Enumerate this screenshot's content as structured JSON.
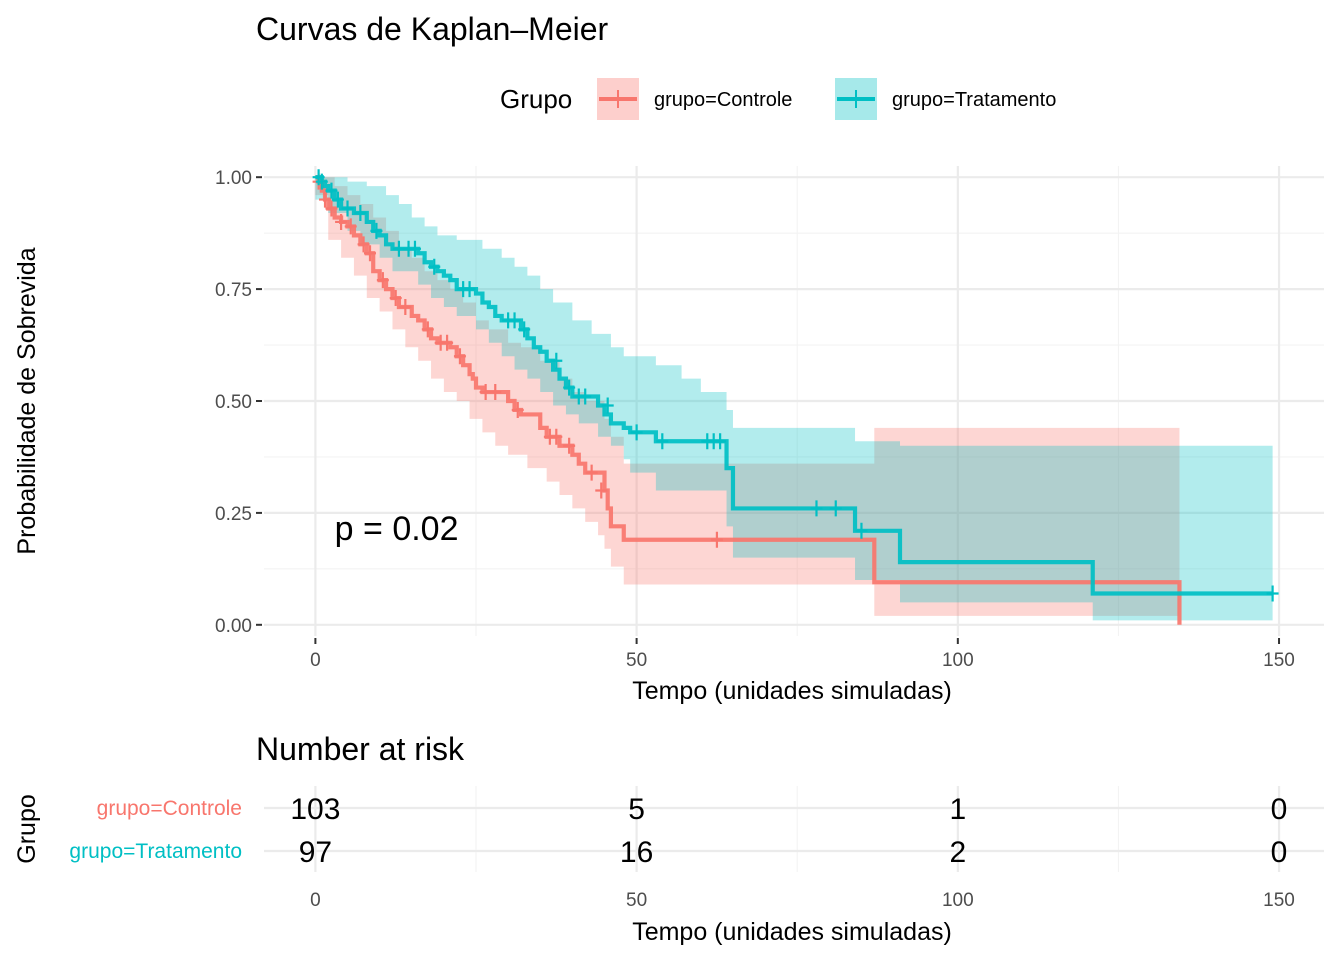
{
  "chart_data": [
    {
      "type": "line",
      "subtype": "kaplan-meier",
      "title": "Curvas de Kaplan–Meier",
      "xlabel": "Tempo (unidades simuladas)",
      "ylabel": "Probabilidade de Sobrevida",
      "xlim": [
        -8,
        157
      ],
      "ylim": [
        -0.025,
        1.025
      ],
      "x_ticks": [
        0,
        50,
        100,
        150
      ],
      "x_tick_labels": [
        "0",
        "50",
        "100",
        "150"
      ],
      "y_ticks": [
        0,
        0.25,
        0.5,
        0.75,
        1
      ],
      "y_tick_labels": [
        "0.00",
        "0.25",
        "0.50",
        "0.75",
        "1.00"
      ],
      "grid": true,
      "legend": {
        "title": "Grupo",
        "position": "top",
        "entries": [
          "grupo=Controle",
          "grupo=Tratamento"
        ]
      },
      "annotation": "p = 0.02",
      "annotation_at": [
        3,
        0.19
      ],
      "series": [
        {
          "name": "grupo=Controle",
          "color": "#F8766D",
          "steps": [
            [
              0,
              1.0
            ],
            [
              0.5,
              0.99
            ],
            [
              1,
              0.97
            ],
            [
              1.5,
              0.95
            ],
            [
              2,
              0.93
            ],
            [
              3,
              0.91
            ],
            [
              4,
              0.9
            ],
            [
              5,
              0.89
            ],
            [
              6,
              0.87
            ],
            [
              7,
              0.85
            ],
            [
              8,
              0.83
            ],
            [
              9,
              0.79
            ],
            [
              10,
              0.77
            ],
            [
              11,
              0.75
            ],
            [
              12,
              0.73
            ],
            [
              13,
              0.71
            ],
            [
              15,
              0.69
            ],
            [
              16,
              0.68
            ],
            [
              17,
              0.66
            ],
            [
              18,
              0.64
            ],
            [
              19,
              0.63
            ],
            [
              21,
              0.62
            ],
            [
              22,
              0.6
            ],
            [
              23,
              0.58
            ],
            [
              24,
              0.56
            ],
            [
              24.5,
              0.55
            ],
            [
              25,
              0.53
            ],
            [
              26,
              0.52
            ],
            [
              30,
              0.5
            ],
            [
              31,
              0.48
            ],
            [
              32,
              0.47
            ],
            [
              35,
              0.44
            ],
            [
              36,
              0.42
            ],
            [
              38,
              0.4
            ],
            [
              40,
              0.38
            ],
            [
              41,
              0.36
            ],
            [
              42,
              0.34
            ],
            [
              45,
              0.3
            ],
            [
              45.5,
              0.26
            ],
            [
              46,
              0.22
            ],
            [
              48,
              0.19
            ],
            [
              87,
              0.095
            ],
            [
              134.5,
              0.0
            ]
          ],
          "end_x": 134.5,
          "ci_upper": [
            [
              0,
              1.0
            ],
            [
              2,
              1.0
            ],
            [
              3,
              0.98
            ],
            [
              5,
              0.96
            ],
            [
              7,
              0.94
            ],
            [
              9,
              0.91
            ],
            [
              11,
              0.88
            ],
            [
              13,
              0.84
            ],
            [
              15,
              0.82
            ],
            [
              17,
              0.79
            ],
            [
              19,
              0.77
            ],
            [
              21,
              0.75
            ],
            [
              23,
              0.72
            ],
            [
              25,
              0.68
            ],
            [
              27,
              0.66
            ],
            [
              30,
              0.63
            ],
            [
              32,
              0.62
            ],
            [
              35,
              0.59
            ],
            [
              38,
              0.55
            ],
            [
              40,
              0.52
            ],
            [
              42,
              0.5
            ],
            [
              45,
              0.46
            ],
            [
              46,
              0.42
            ],
            [
              48,
              0.36
            ],
            [
              87,
              0.44
            ]
          ],
          "ci_lower": [
            [
              0,
              0.96
            ],
            [
              2,
              0.86
            ],
            [
              4,
              0.82
            ],
            [
              6,
              0.78
            ],
            [
              8,
              0.73
            ],
            [
              10,
              0.7
            ],
            [
              12,
              0.66
            ],
            [
              14,
              0.62
            ],
            [
              16,
              0.59
            ],
            [
              18,
              0.55
            ],
            [
              20,
              0.52
            ],
            [
              22,
              0.5
            ],
            [
              24,
              0.46
            ],
            [
              26,
              0.43
            ],
            [
              28,
              0.4
            ],
            [
              30,
              0.38
            ],
            [
              33,
              0.35
            ],
            [
              36,
              0.32
            ],
            [
              38,
              0.29
            ],
            [
              40,
              0.26
            ],
            [
              42,
              0.23
            ],
            [
              44,
              0.2
            ],
            [
              45,
              0.17
            ],
            [
              46,
              0.13
            ],
            [
              48,
              0.09
            ],
            [
              87,
              0.02
            ],
            [
              134.5,
              0.0
            ]
          ],
          "censor_times": [
            [
              0.5,
              0.99
            ],
            [
              1.5,
              0.95
            ],
            [
              2.5,
              0.93
            ],
            [
              4,
              0.9
            ],
            [
              5.5,
              0.89
            ],
            [
              7.5,
              0.85
            ],
            [
              8.5,
              0.83
            ],
            [
              10.5,
              0.77
            ],
            [
              12.5,
              0.73
            ],
            [
              14,
              0.71
            ],
            [
              17.5,
              0.66
            ],
            [
              19.5,
              0.63
            ],
            [
              20.5,
              0.63
            ],
            [
              22.5,
              0.6
            ],
            [
              26.5,
              0.52
            ],
            [
              28,
              0.52
            ],
            [
              31.5,
              0.48
            ],
            [
              36.5,
              0.42
            ],
            [
              37.5,
              0.42
            ],
            [
              39.5,
              0.4
            ],
            [
              43,
              0.34
            ],
            [
              44.5,
              0.3
            ],
            [
              62.5,
              0.19
            ]
          ]
        },
        {
          "name": "grupo=Tratamento",
          "color": "#00BFC4",
          "steps": [
            [
              0,
              1.0
            ],
            [
              1,
              0.99
            ],
            [
              1.5,
              0.98
            ],
            [
              2,
              0.97
            ],
            [
              3,
              0.95
            ],
            [
              4,
              0.93
            ],
            [
              6,
              0.92
            ],
            [
              8,
              0.9
            ],
            [
              9,
              0.88
            ],
            [
              10,
              0.87
            ],
            [
              11,
              0.85
            ],
            [
              12,
              0.84
            ],
            [
              16,
              0.83
            ],
            [
              17,
              0.81
            ],
            [
              18,
              0.8
            ],
            [
              19,
              0.79
            ],
            [
              20,
              0.78
            ],
            [
              21,
              0.77
            ],
            [
              22,
              0.75
            ],
            [
              25,
              0.74
            ],
            [
              26,
              0.72
            ],
            [
              27,
              0.71
            ],
            [
              28,
              0.69
            ],
            [
              29,
              0.68
            ],
            [
              32,
              0.66
            ],
            [
              33,
              0.64
            ],
            [
              34,
              0.62
            ],
            [
              35,
              0.61
            ],
            [
              36,
              0.59
            ],
            [
              37,
              0.57
            ],
            [
              38,
              0.55
            ],
            [
              39,
              0.53
            ],
            [
              40,
              0.51
            ],
            [
              44,
              0.49
            ],
            [
              45,
              0.47
            ],
            [
              46,
              0.45
            ],
            [
              48,
              0.44
            ],
            [
              49,
              0.43
            ],
            [
              53,
              0.41
            ],
            [
              64,
              0.35
            ],
            [
              65,
              0.26
            ],
            [
              84,
              0.21
            ],
            [
              91,
              0.14
            ],
            [
              121,
              0.07
            ]
          ],
          "end_x": 149,
          "ci_upper": [
            [
              0,
              1.0
            ],
            [
              5,
              0.99
            ],
            [
              8,
              0.98
            ],
            [
              11,
              0.96
            ],
            [
              13,
              0.94
            ],
            [
              15,
              0.91
            ],
            [
              17,
              0.89
            ],
            [
              19,
              0.87
            ],
            [
              22,
              0.86
            ],
            [
              26,
              0.84
            ],
            [
              29,
              0.82
            ],
            [
              31,
              0.8
            ],
            [
              33,
              0.78
            ],
            [
              35,
              0.75
            ],
            [
              37,
              0.72
            ],
            [
              40,
              0.68
            ],
            [
              43,
              0.65
            ],
            [
              46,
              0.62
            ],
            [
              48,
              0.6
            ],
            [
              53,
              0.58
            ],
            [
              57,
              0.55
            ],
            [
              60,
              0.52
            ],
            [
              64,
              0.48
            ],
            [
              65,
              0.44
            ],
            [
              84,
              0.41
            ],
            [
              91,
              0.4
            ]
          ],
          "ci_lower": [
            [
              0,
              0.95
            ],
            [
              2,
              0.92
            ],
            [
              5,
              0.88
            ],
            [
              7,
              0.85
            ],
            [
              10,
              0.82
            ],
            [
              12,
              0.79
            ],
            [
              16,
              0.76
            ],
            [
              18,
              0.73
            ],
            [
              20,
              0.71
            ],
            [
              22,
              0.69
            ],
            [
              25,
              0.66
            ],
            [
              27,
              0.63
            ],
            [
              29,
              0.6
            ],
            [
              31,
              0.57
            ],
            [
              33,
              0.55
            ],
            [
              35,
              0.52
            ],
            [
              37,
              0.49
            ],
            [
              39,
              0.47
            ],
            [
              41,
              0.45
            ],
            [
              44,
              0.42
            ],
            [
              46,
              0.4
            ],
            [
              48,
              0.37
            ],
            [
              49,
              0.34
            ],
            [
              53,
              0.3
            ],
            [
              64,
              0.22
            ],
            [
              65,
              0.15
            ],
            [
              84,
              0.1
            ],
            [
              91,
              0.05
            ],
            [
              121,
              0.01
            ],
            [
              148,
              0.01
            ]
          ],
          "censor_times": [
            [
              0.5,
              1.0
            ],
            [
              1,
              0.99
            ],
            [
              2.5,
              0.97
            ],
            [
              3.5,
              0.95
            ],
            [
              5,
              0.93
            ],
            [
              7,
              0.92
            ],
            [
              9.5,
              0.88
            ],
            [
              13,
              0.84
            ],
            [
              14.5,
              0.84
            ],
            [
              15.5,
              0.84
            ],
            [
              18.5,
              0.8
            ],
            [
              23,
              0.75
            ],
            [
              24,
              0.75
            ],
            [
              30,
              0.68
            ],
            [
              31,
              0.68
            ],
            [
              32.5,
              0.66
            ],
            [
              37.5,
              0.59
            ],
            [
              39.5,
              0.53
            ],
            [
              41,
              0.51
            ],
            [
              42,
              0.51
            ],
            [
              45.5,
              0.49
            ],
            [
              50,
              0.43
            ],
            [
              54,
              0.41
            ],
            [
              61,
              0.41
            ],
            [
              62,
              0.41
            ],
            [
              63,
              0.41
            ],
            [
              78,
              0.26
            ],
            [
              81,
              0.26
            ],
            [
              85,
              0.21
            ],
            [
              149,
              0.07
            ]
          ]
        }
      ]
    },
    {
      "type": "table",
      "title": "Number at risk",
      "ylabel": "Grupo",
      "xlabel": "Tempo (unidades simuladas)",
      "x_ticks": [
        0,
        50,
        100,
        150
      ],
      "x_tick_labels": [
        "0",
        "50",
        "100",
        "150"
      ],
      "rows": [
        {
          "label": "grupo=Controle",
          "color": "#F8766D",
          "values": [
            "103",
            "5",
            "1",
            "0"
          ]
        },
        {
          "label": "grupo=Tratamento",
          "color": "#00BFC4",
          "values": [
            "97",
            "16",
            "2",
            "0"
          ]
        }
      ]
    }
  ]
}
